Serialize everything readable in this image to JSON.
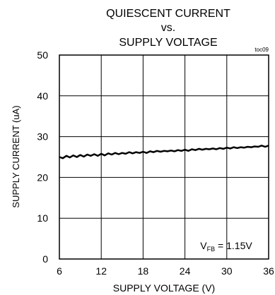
{
  "chart_data": {
    "type": "line",
    "title_lines": [
      "QUIESCENT CURRENT",
      "vs.",
      "SUPPLY VOLTAGE"
    ],
    "tag": "toc09",
    "xlabel": "SUPPLY VOLTAGE (V)",
    "ylabel": "SUPPLY CURRENT (uA)",
    "xlim": [
      6,
      36
    ],
    "ylim": [
      0,
      50
    ],
    "x_ticks": [
      "6",
      "12",
      "18",
      "24",
      "30",
      "36"
    ],
    "y_ticks": [
      "0",
      "10",
      "20",
      "30",
      "40",
      "50"
    ],
    "grid": true,
    "annotation": {
      "main": "V",
      "sub": "FB",
      "rest": " = 1.15V"
    },
    "series": [
      {
        "x": [
          6,
          6.5,
          7,
          7.5,
          8,
          8.5,
          9,
          9.5,
          10,
          10.5,
          11,
          11.5,
          12,
          12.5,
          13,
          13.5,
          14,
          14.5,
          15,
          15.5,
          16,
          16.5,
          17,
          17.5,
          18,
          18.5,
          19,
          19.5,
          20,
          20.5,
          21,
          21.5,
          22,
          22.5,
          23,
          23.5,
          24,
          24.5,
          25,
          25.5,
          26,
          26.5,
          27,
          27.5,
          28,
          28.5,
          29,
          29.5,
          30,
          30.5,
          31,
          31.5,
          32,
          32.5,
          33,
          33.5,
          34,
          34.5,
          35,
          35.5,
          36
        ],
        "values": [
          25.0,
          24.7,
          25.3,
          24.9,
          25.4,
          25.0,
          25.5,
          25.1,
          25.6,
          25.3,
          25.7,
          25.3,
          25.8,
          25.4,
          25.9,
          25.6,
          26.0,
          25.7,
          26.0,
          25.8,
          26.2,
          25.9,
          26.2,
          26.0,
          26.3,
          26.0,
          26.4,
          26.2,
          26.5,
          26.3,
          26.5,
          26.4,
          26.6,
          26.4,
          26.7,
          26.5,
          26.8,
          26.5,
          26.9,
          26.7,
          27.0,
          26.8,
          27.0,
          26.9,
          27.1,
          26.9,
          27.2,
          27.0,
          27.3,
          27.1,
          27.4,
          27.2,
          27.4,
          27.3,
          27.5,
          27.4,
          27.6,
          27.5,
          27.8,
          27.5,
          27.8
        ]
      }
    ]
  }
}
